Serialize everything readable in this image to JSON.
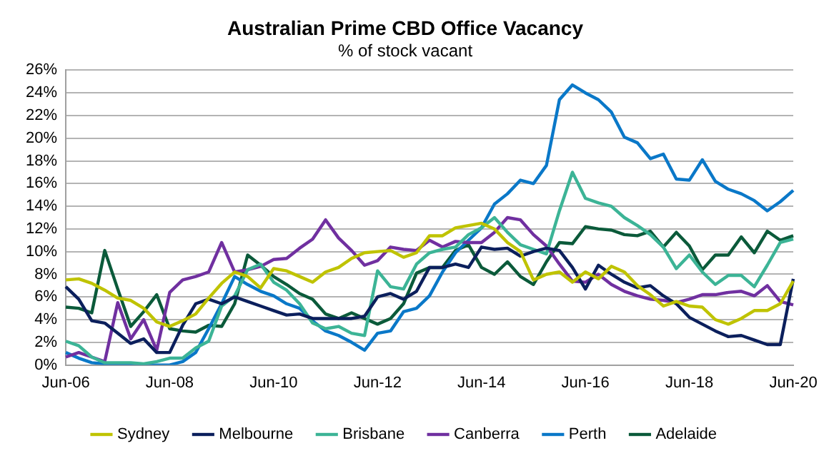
{
  "chart_data": {
    "type": "line",
    "title": "Australian Prime CBD Office Vacancy",
    "subtitle": "% of stock vacant",
    "categories": [
      "Jun-06",
      null,
      null,
      null,
      null,
      null,
      null,
      null,
      "Jun-08",
      null,
      null,
      null,
      null,
      null,
      null,
      null,
      "Jun-10",
      null,
      null,
      null,
      null,
      null,
      null,
      null,
      "Jun-12",
      null,
      null,
      null,
      null,
      null,
      null,
      null,
      "Jun-14",
      null,
      null,
      null,
      null,
      null,
      null,
      null,
      "Jun-16",
      null,
      null,
      null,
      null,
      null,
      null,
      null,
      "Jun-18",
      null,
      null,
      null,
      null,
      null,
      null,
      null,
      "Jun-20"
    ],
    "series": [
      {
        "name": "Sydney",
        "color": "#bfc300",
        "values": [
          7.5,
          7.6,
          7.2,
          6.6,
          5.9,
          5.7,
          5.0,
          3.8,
          3.4,
          3.9,
          4.5,
          5.9,
          7.2,
          8.2,
          7.8,
          6.8,
          8.5,
          8.3,
          7.8,
          7.3,
          8.2,
          8.6,
          9.4,
          9.9,
          10.0,
          10.1,
          9.5,
          9.9,
          11.4,
          11.4,
          12.1,
          12.3,
          12.5,
          12.0,
          10.8,
          10.0,
          7.5,
          8.0,
          8.2,
          7.3,
          8.2,
          7.6,
          8.7,
          8.2,
          7.0,
          6.2,
          5.2,
          5.6,
          5.2,
          5.1,
          4.0,
          3.6,
          4.1,
          4.8,
          4.8,
          5.4,
          7.4
        ]
      },
      {
        "name": "Melbourne",
        "color": "#0b1f5c",
        "values": [
          6.9,
          5.8,
          3.9,
          3.7,
          2.8,
          1.9,
          2.3,
          1.1,
          1.1,
          3.5,
          5.4,
          5.8,
          5.4,
          6.0,
          5.6,
          5.2,
          4.8,
          4.4,
          4.5,
          4.1,
          4.1,
          4.1,
          4.1,
          4.3,
          6.0,
          6.3,
          5.8,
          6.5,
          8.6,
          8.6,
          8.9,
          8.6,
          10.4,
          10.2,
          10.3,
          9.6,
          10.0,
          10.3,
          10.1,
          8.6,
          6.7,
          8.8,
          8.0,
          7.3,
          6.8,
          7.0,
          6.1,
          5.4,
          4.2,
          3.6,
          3.0,
          2.5,
          2.6,
          2.2,
          1.8,
          1.8,
          7.6
        ]
      },
      {
        "name": "Brisbane",
        "color": "#3cb496",
        "values": [
          2.1,
          1.7,
          0.7,
          0.2,
          0.2,
          0.2,
          0.1,
          0.3,
          0.6,
          0.6,
          1.5,
          2.1,
          5.2,
          6.1,
          8.4,
          8.9,
          7.3,
          6.6,
          5.4,
          3.7,
          3.2,
          3.4,
          2.8,
          2.6,
          8.3,
          6.9,
          6.7,
          8.9,
          9.9,
          10.2,
          10.4,
          11.5,
          12.1,
          13.0,
          11.7,
          10.6,
          10.2,
          9.8,
          13.6,
          17.0,
          14.7,
          14.3,
          14.0,
          13.0,
          12.3,
          11.5,
          10.4,
          8.5,
          9.7,
          8.2,
          7.1,
          7.9,
          7.9,
          6.9,
          8.8,
          10.8,
          11.1
        ]
      },
      {
        "name": "Canberra",
        "color": "#7030a0",
        "values": [
          0.7,
          1.1,
          0.7,
          0.3,
          5.5,
          2.3,
          4.0,
          1.3,
          6.4,
          7.5,
          7.8,
          8.2,
          10.8,
          8.2,
          8.4,
          8.7,
          9.3,
          9.4,
          10.3,
          11.1,
          12.8,
          11.2,
          10.1,
          8.8,
          9.2,
          10.4,
          10.2,
          10.1,
          11.0,
          10.4,
          10.9,
          10.8,
          10.8,
          11.7,
          13.0,
          12.8,
          11.5,
          10.5,
          8.9,
          7.4,
          7.3,
          8.0,
          7.1,
          6.5,
          6.1,
          5.8,
          5.7,
          5.5,
          5.8,
          6.2,
          6.2,
          6.4,
          6.5,
          6.1,
          7.0,
          5.6,
          5.3
        ]
      },
      {
        "name": "Perth",
        "color": "#0a78c8",
        "values": [
          1.1,
          0.6,
          0.2,
          0.1,
          0.1,
          0.1,
          0.0,
          0.0,
          0.0,
          0.3,
          1.1,
          3.2,
          5.4,
          7.8,
          7.1,
          6.5,
          6.1,
          5.4,
          5.0,
          3.9,
          3.0,
          2.6,
          2.0,
          1.3,
          2.8,
          3.0,
          4.7,
          5.0,
          6.1,
          8.2,
          9.9,
          11.0,
          12.1,
          14.2,
          15.1,
          16.3,
          16.0,
          17.6,
          23.4,
          24.7,
          24.0,
          23.4,
          22.3,
          20.1,
          19.6,
          18.2,
          18.6,
          16.4,
          16.3,
          18.1,
          16.2,
          15.5,
          15.1,
          14.5,
          13.6,
          14.4,
          15.4
        ]
      },
      {
        "name": "Adelaide",
        "color": "#0b5a3a",
        "values": [
          5.1,
          5.0,
          4.6,
          10.1,
          6.7,
          3.4,
          4.7,
          6.2,
          3.2,
          3.0,
          2.9,
          3.5,
          3.4,
          5.4,
          9.7,
          8.8,
          7.8,
          7.1,
          6.3,
          5.8,
          4.5,
          4.1,
          4.6,
          4.1,
          3.6,
          4.1,
          5.4,
          8.1,
          8.6,
          8.6,
          10.1,
          10.6,
          8.6,
          8.0,
          9.1,
          7.8,
          7.1,
          9.1,
          10.8,
          10.7,
          12.2,
          12.0,
          11.9,
          11.5,
          11.4,
          11.8,
          10.4,
          11.7,
          10.5,
          8.4,
          9.7,
          9.7,
          11.3,
          9.9,
          11.8,
          11.0,
          11.4
        ]
      }
    ],
    "ylim": [
      0,
      26
    ],
    "yticks": [
      {
        "value": 0,
        "label": "0%"
      },
      {
        "value": 2,
        "label": "2%"
      },
      {
        "value": 4,
        "label": "4%"
      },
      {
        "value": 6,
        "label": "6%"
      },
      {
        "value": 8,
        "label": "8%"
      },
      {
        "value": 10,
        "label": "10%"
      },
      {
        "value": 12,
        "label": "12%"
      },
      {
        "value": 14,
        "label": "14%"
      },
      {
        "value": 16,
        "label": "16%"
      },
      {
        "value": 18,
        "label": "18%"
      },
      {
        "value": 20,
        "label": "20%"
      },
      {
        "value": 22,
        "label": "22%"
      },
      {
        "value": 24,
        "label": "24%"
      },
      {
        "value": 26,
        "label": "26%"
      }
    ],
    "grid": "y",
    "legend": "bottom",
    "marker": "none",
    "line_style": "solid"
  }
}
